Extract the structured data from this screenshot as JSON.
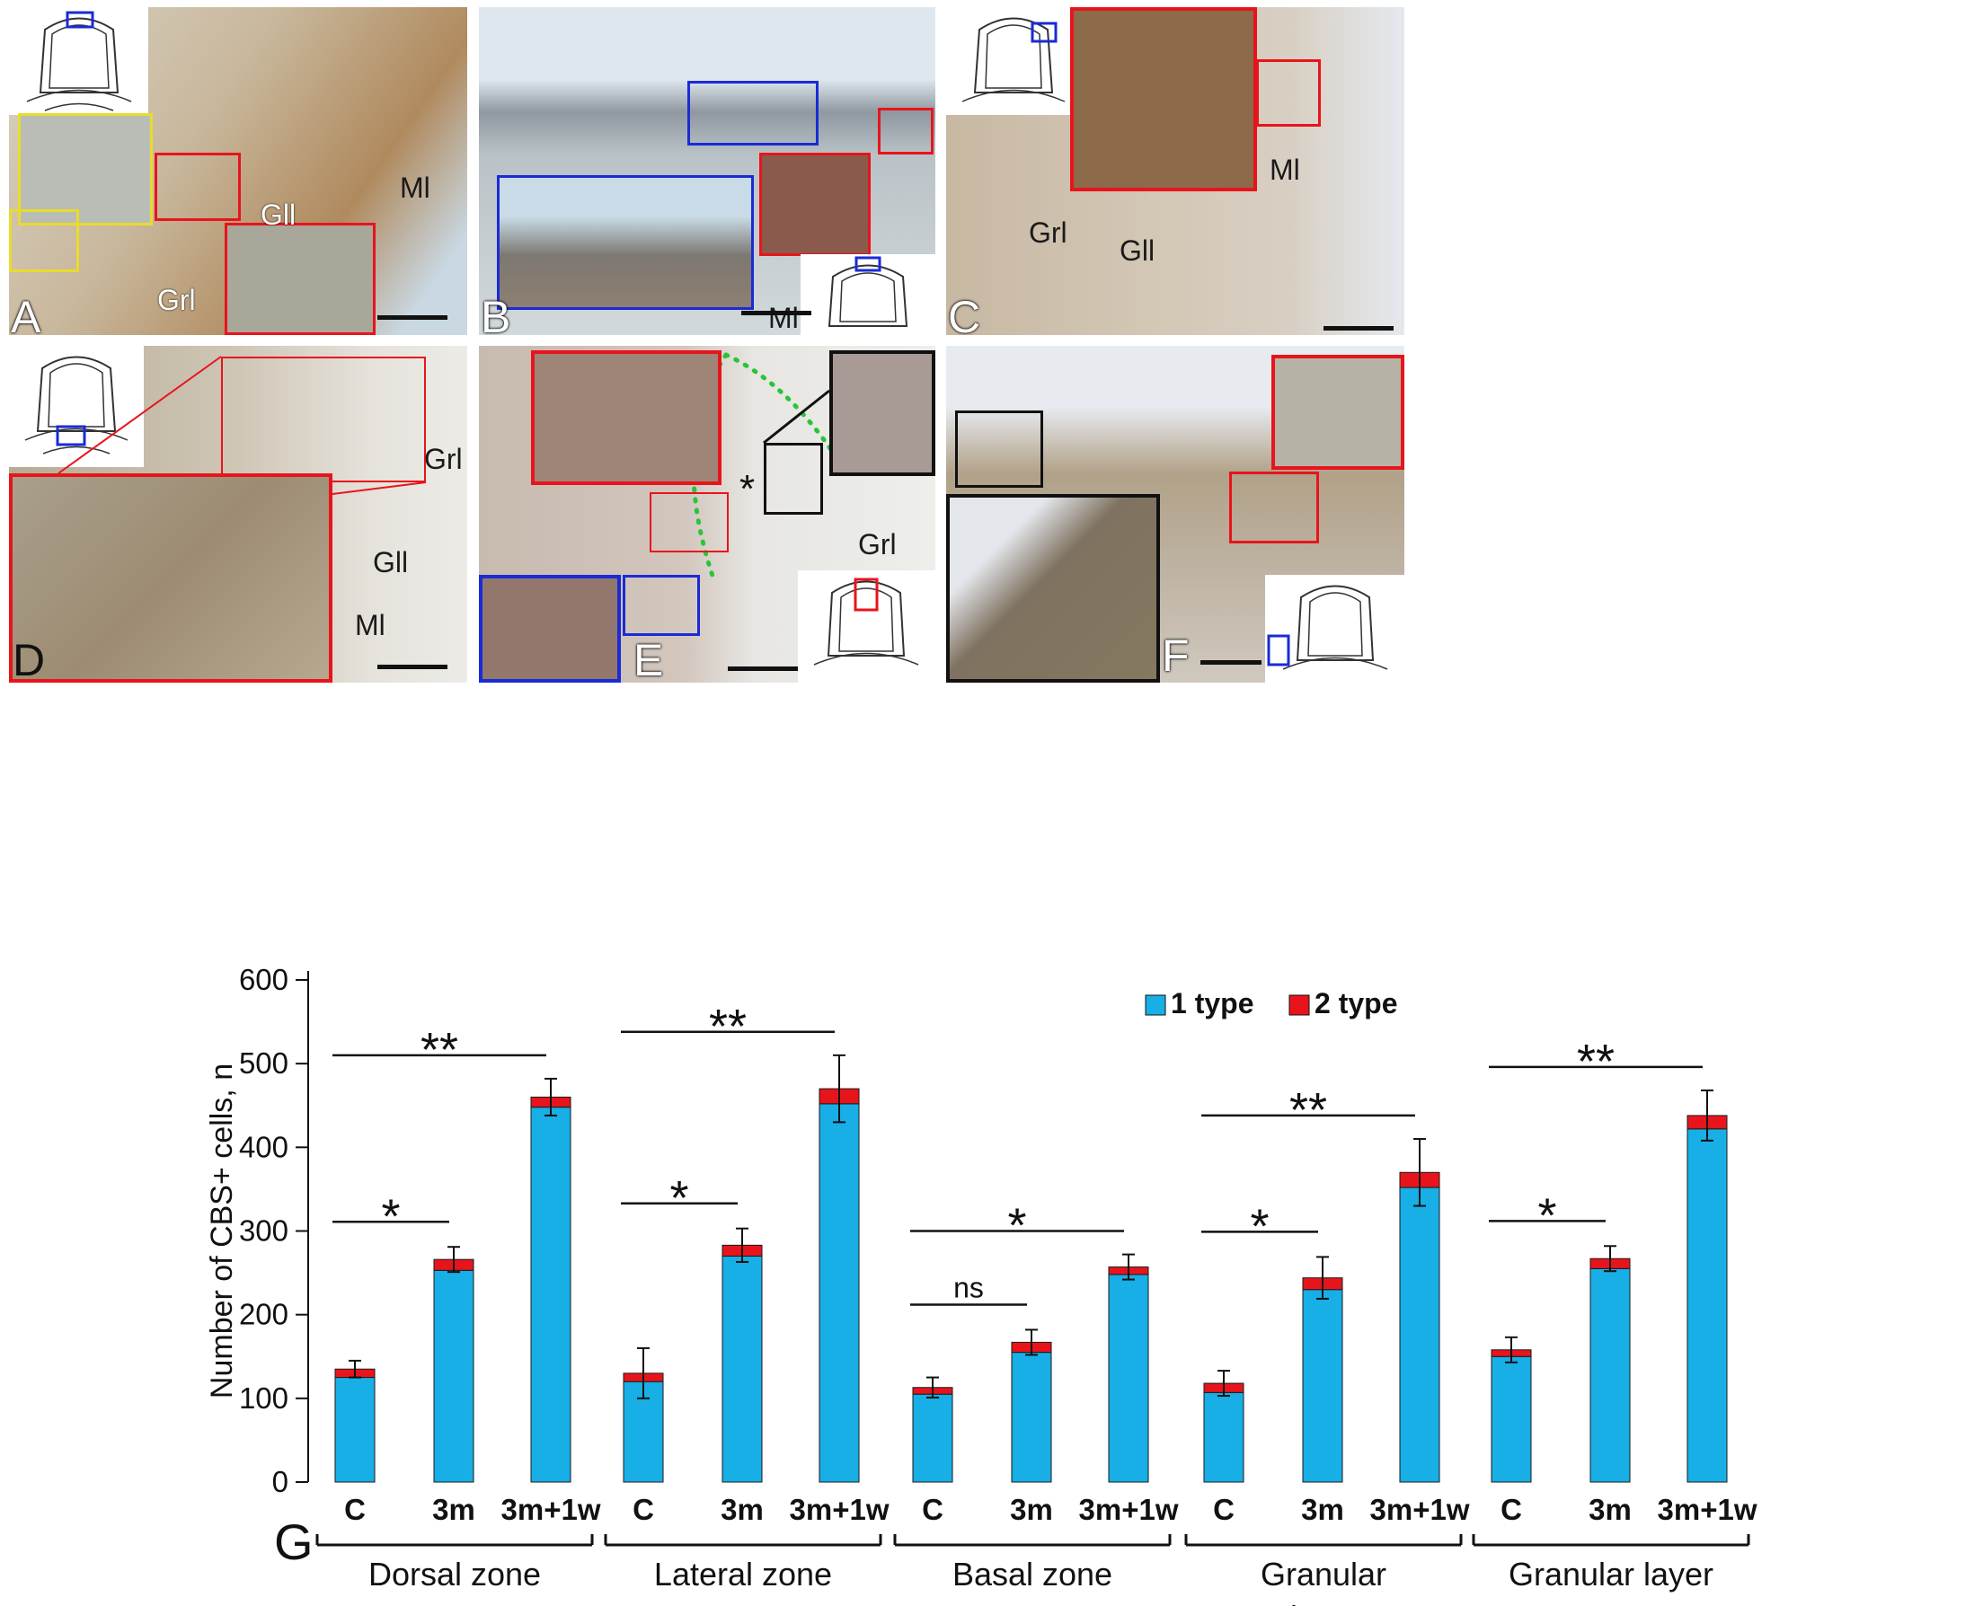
{
  "panels": [
    {
      "letter": "A",
      "regions": [
        "Ml",
        "Gll",
        "Grl"
      ]
    },
    {
      "letter": "B",
      "regions": [
        "Ml"
      ]
    },
    {
      "letter": "C",
      "regions": [
        "Ml",
        "Grl",
        "Gll"
      ]
    },
    {
      "letter": "D",
      "regions": [
        "Grl",
        "Gll",
        "Ml"
      ]
    },
    {
      "letter": "E",
      "regions": [
        "Grl"
      ]
    },
    {
      "letter": "F",
      "regions": []
    }
  ],
  "chart_label": "G",
  "colors": {
    "type1": "#18aee6",
    "type2": "#e8141c",
    "yellow_arrow": "#f5e321",
    "green_arrow": "#29c43a",
    "inset_red": "#e8141c",
    "inset_blue": "#1a2bd6",
    "inset_yellow": "#e8dc2c",
    "inset_black": "#111111"
  },
  "chart_data": {
    "type": "bar",
    "stacked": true,
    "ylabel": "Number of CBS+ cells, n",
    "ylim": [
      0,
      600
    ],
    "yticks": [
      0,
      100,
      200,
      300,
      400,
      500,
      600
    ],
    "legend": {
      "placement": "top",
      "items": [
        {
          "name": "1 type",
          "color": "#18aee6"
        },
        {
          "name": "2 type",
          "color": "#e8141c"
        }
      ]
    },
    "groups": [
      {
        "name": "Dorsal zone",
        "categories": [
          "C",
          "3m",
          "3m+1w"
        ],
        "type1": [
          125,
          253,
          448
        ],
        "type2": [
          10,
          13,
          12
        ],
        "error": [
          10,
          15,
          22
        ],
        "significance": [
          {
            "from": 0,
            "to": 1,
            "label": "*"
          },
          {
            "from": 0,
            "to": 2,
            "label": "**"
          }
        ]
      },
      {
        "name": "Lateral zone",
        "categories": [
          "C",
          "3m",
          "3m+1w"
        ],
        "type1": [
          120,
          270,
          452
        ],
        "type2": [
          10,
          13,
          18
        ],
        "error": [
          30,
          20,
          40
        ],
        "significance": [
          {
            "from": 0,
            "to": 1,
            "label": "*"
          },
          {
            "from": 0,
            "to": 2,
            "label": "**"
          }
        ]
      },
      {
        "name": "Basal zone",
        "categories": [
          "C",
          "3m",
          "3m+1w"
        ],
        "type1": [
          105,
          155,
          248
        ],
        "type2": [
          8,
          12,
          9
        ],
        "error": [
          12,
          15,
          15
        ],
        "significance": [
          {
            "from": 0,
            "to": 1,
            "label": "ns"
          },
          {
            "from": 0,
            "to": 2,
            "label": "*"
          }
        ]
      },
      {
        "name": "Granular eminences",
        "categories": [
          "C",
          "3m",
          "3m+1w"
        ],
        "type1": [
          107,
          230,
          352
        ],
        "type2": [
          11,
          14,
          18
        ],
        "error": [
          15,
          25,
          40
        ],
        "significance": [
          {
            "from": 0,
            "to": 1,
            "label": "*"
          },
          {
            "from": 0,
            "to": 2,
            "label": "**"
          }
        ]
      },
      {
        "name": "Granular layer",
        "categories": [
          "C",
          "3m",
          "3m+1w"
        ],
        "type1": [
          150,
          255,
          422
        ],
        "type2": [
          8,
          12,
          16
        ],
        "error": [
          15,
          15,
          30
        ],
        "significance": [
          {
            "from": 0,
            "to": 1,
            "label": "*"
          },
          {
            "from": 0,
            "to": 2,
            "label": "**"
          }
        ]
      }
    ]
  }
}
